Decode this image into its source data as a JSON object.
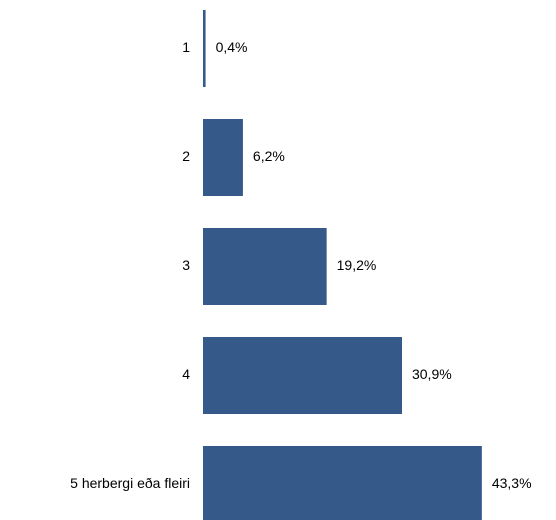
{
  "chart_data": {
    "type": "bar",
    "orientation": "horizontal",
    "categories": [
      "1",
      "2",
      "3",
      "4",
      "5 herbergi eða fleiri"
    ],
    "values": [
      0.4,
      6.2,
      19.2,
      30.9,
      43.3
    ],
    "value_labels": [
      "0,4%",
      "6,2%",
      "19,2%",
      "30,9%",
      "43,3%"
    ],
    "color": "#355a8a"
  }
}
